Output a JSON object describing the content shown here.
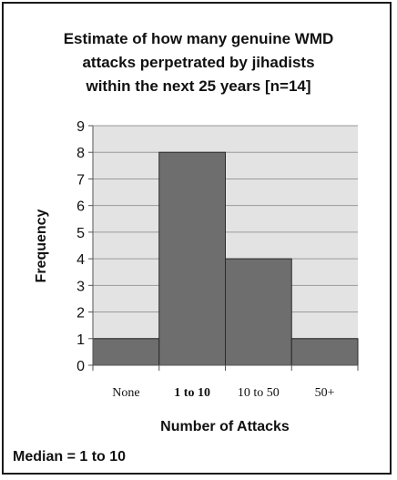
{
  "chart_data": {
    "type": "bar",
    "title_lines": [
      "Estimate of how many genuine WMD",
      "attacks perpetrated by jihadists",
      "within the next 25 years [n=14]"
    ],
    "categories": [
      "None",
      "1 to 10",
      "10 to 50",
      "50+"
    ],
    "values": [
      1,
      8,
      4,
      1
    ],
    "xlabel": "Number of Attacks",
    "ylabel": "Frequency",
    "ylim": [
      0,
      9
    ],
    "yticks": [
      0,
      1,
      2,
      3,
      4,
      5,
      6,
      7,
      8,
      9
    ],
    "grid": true,
    "bar_color": "#6e6e6e",
    "plot_background": "#e3e3e3"
  },
  "footnote": "Median = 1 to 10"
}
